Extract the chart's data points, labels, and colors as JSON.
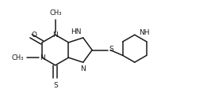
{
  "bg_color": "#ffffff",
  "line_color": "#1a1a1a",
  "line_width": 1.1,
  "font_size": 6.5,
  "figsize": [
    2.61,
    1.32
  ],
  "dpi": 100,
  "xlim": [
    0.0,
    1.0
  ],
  "ylim": [
    0.0,
    1.0
  ]
}
